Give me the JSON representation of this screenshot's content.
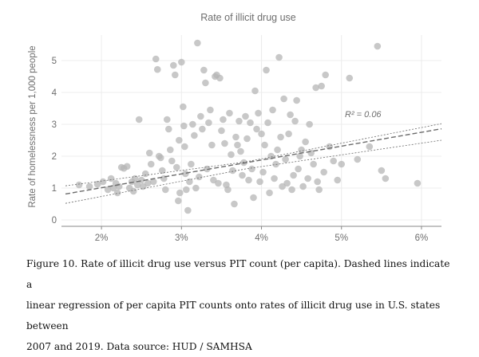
{
  "chart_data": {
    "type": "scatter",
    "title": "Rate of illicit drug use",
    "xlabel": "",
    "ylabel": "Rate of homelessness per 1,000 people",
    "xlim": [
      1.5,
      6.25
    ],
    "ylim": [
      -0.2,
      5.8
    ],
    "xticks": [
      2,
      3,
      4,
      5,
      6
    ],
    "xtick_labels": [
      "2%",
      "3%",
      "4%",
      "5%",
      "6%"
    ],
    "yticks": [
      0,
      1,
      2,
      3,
      4,
      5
    ],
    "ytick_labels": [
      "0",
      "1",
      "2",
      "3",
      "4",
      "5"
    ],
    "grid": true,
    "annotation": "R² = 0.06",
    "points_color": "#b5b5b5",
    "line_color": "#6b6b6b",
    "regression": {
      "slope": 0.435,
      "intercept": 0.14
    },
    "confidence_band": [
      {
        "x": 1.55,
        "lower": 0.52,
        "upper": 1.07
      },
      {
        "x": 3.8,
        "lower": 1.6,
        "upper": 1.82
      },
      {
        "x": 6.25,
        "lower": 2.5,
        "upper": 3.02
      }
    ],
    "points": [
      [
        1.72,
        1.1
      ],
      [
        1.85,
        1.05
      ],
      [
        1.95,
        1.12
      ],
      [
        2.02,
        1.2
      ],
      [
        2.08,
        0.95
      ],
      [
        2.12,
        1.3
      ],
      [
        2.15,
        1.0
      ],
      [
        2.18,
        1.15
      ],
      [
        2.2,
        0.85
      ],
      [
        2.22,
        1.05
      ],
      [
        2.25,
        1.65
      ],
      [
        2.28,
        1.62
      ],
      [
        2.32,
        1.68
      ],
      [
        2.35,
        1.0
      ],
      [
        2.38,
        1.2
      ],
      [
        2.4,
        0.9
      ],
      [
        2.42,
        1.3
      ],
      [
        2.45,
        1.1
      ],
      [
        2.47,
        3.15
      ],
      [
        2.5,
        1.25
      ],
      [
        2.52,
        1.05
      ],
      [
        2.55,
        1.45
      ],
      [
        2.58,
        1.15
      ],
      [
        2.6,
        2.1
      ],
      [
        2.62,
        1.75
      ],
      [
        2.65,
        1.2
      ],
      [
        2.68,
        5.05
      ],
      [
        2.7,
        4.72
      ],
      [
        2.72,
        2.0
      ],
      [
        2.74,
        1.95
      ],
      [
        2.76,
        1.55
      ],
      [
        2.78,
        1.3
      ],
      [
        2.8,
        0.95
      ],
      [
        2.82,
        3.15
      ],
      [
        2.84,
        2.85
      ],
      [
        2.86,
        2.2
      ],
      [
        2.88,
        1.85
      ],
      [
        2.9,
        4.85
      ],
      [
        2.92,
        4.55
      ],
      [
        2.94,
        1.65
      ],
      [
        2.96,
        0.6
      ],
      [
        2.97,
        2.5
      ],
      [
        2.98,
        0.85
      ],
      [
        3.0,
        4.95
      ],
      [
        3.02,
        3.55
      ],
      [
        3.03,
        2.95
      ],
      [
        3.04,
        2.3
      ],
      [
        3.05,
        1.45
      ],
      [
        3.06,
        0.95
      ],
      [
        3.08,
        0.3
      ],
      [
        3.1,
        1.2
      ],
      [
        3.12,
        1.75
      ],
      [
        3.14,
        3.0
      ],
      [
        3.16,
        2.65
      ],
      [
        3.18,
        1.0
      ],
      [
        3.2,
        5.55
      ],
      [
        3.22,
        1.35
      ],
      [
        3.24,
        3.25
      ],
      [
        3.26,
        2.85
      ],
      [
        3.28,
        4.7
      ],
      [
        3.3,
        4.3
      ],
      [
        3.32,
        1.6
      ],
      [
        3.34,
        3.05
      ],
      [
        3.36,
        3.45
      ],
      [
        3.38,
        2.35
      ],
      [
        3.4,
        1.25
      ],
      [
        3.42,
        4.5
      ],
      [
        3.44,
        4.55
      ],
      [
        3.46,
        1.15
      ],
      [
        3.48,
        4.45
      ],
      [
        3.5,
        2.8
      ],
      [
        3.52,
        3.15
      ],
      [
        3.54,
        2.4
      ],
      [
        3.56,
        1.1
      ],
      [
        3.58,
        0.95
      ],
      [
        3.6,
        3.35
      ],
      [
        3.62,
        2.05
      ],
      [
        3.64,
        1.55
      ],
      [
        3.66,
        0.5
      ],
      [
        3.68,
        2.6
      ],
      [
        3.7,
        2.35
      ],
      [
        3.72,
        3.1
      ],
      [
        3.74,
        2.15
      ],
      [
        3.76,
        1.4
      ],
      [
        3.78,
        1.8
      ],
      [
        3.8,
        3.25
      ],
      [
        3.82,
        2.55
      ],
      [
        3.84,
        1.25
      ],
      [
        3.86,
        3.05
      ],
      [
        3.88,
        1.6
      ],
      [
        3.9,
        0.7
      ],
      [
        3.92,
        4.05
      ],
      [
        3.94,
        2.85
      ],
      [
        3.96,
        3.35
      ],
      [
        3.98,
        1.2
      ],
      [
        4.0,
        2.7
      ],
      [
        4.02,
        1.5
      ],
      [
        4.04,
        2.35
      ],
      [
        4.06,
        4.7
      ],
      [
        4.08,
        3.05
      ],
      [
        4.1,
        0.85
      ],
      [
        4.12,
        2.0
      ],
      [
        4.14,
        3.45
      ],
      [
        4.16,
        1.3
      ],
      [
        4.18,
        1.75
      ],
      [
        4.2,
        2.2
      ],
      [
        4.22,
        5.1
      ],
      [
        4.24,
        2.6
      ],
      [
        4.26,
        1.05
      ],
      [
        4.28,
        3.8
      ],
      [
        4.3,
        1.9
      ],
      [
        4.32,
        1.15
      ],
      [
        4.34,
        2.7
      ],
      [
        4.36,
        3.3
      ],
      [
        4.38,
        0.95
      ],
      [
        4.4,
        1.4
      ],
      [
        4.42,
        3.1
      ],
      [
        4.44,
        3.75
      ],
      [
        4.46,
        1.6
      ],
      [
        4.48,
        2.0
      ],
      [
        4.5,
        2.2
      ],
      [
        4.52,
        1.05
      ],
      [
        4.55,
        2.45
      ],
      [
        4.58,
        1.3
      ],
      [
        4.6,
        3.0
      ],
      [
        4.62,
        2.1
      ],
      [
        4.65,
        1.75
      ],
      [
        4.68,
        4.15
      ],
      [
        4.7,
        1.2
      ],
      [
        4.72,
        0.95
      ],
      [
        4.75,
        4.2
      ],
      [
        4.78,
        1.5
      ],
      [
        4.8,
        4.55
      ],
      [
        4.85,
        2.3
      ],
      [
        4.9,
        1.85
      ],
      [
        4.95,
        1.25
      ],
      [
        5.0,
        1.75
      ],
      [
        5.1,
        4.45
      ],
      [
        5.2,
        1.9
      ],
      [
        5.35,
        2.3
      ],
      [
        5.45,
        5.45
      ],
      [
        5.5,
        1.55
      ],
      [
        5.55,
        1.3
      ],
      [
        5.95,
        1.15
      ]
    ]
  },
  "caption": {
    "text": "Figure 10.  Rate of illicit drug use versus PIT count (per capita). Dashed lines indicate a\nlinear regression of per capita PIT counts onto rates of illicit drug use in U.S. states between\n2007 and 2019. Data source: HUD / SAMHSA"
  }
}
